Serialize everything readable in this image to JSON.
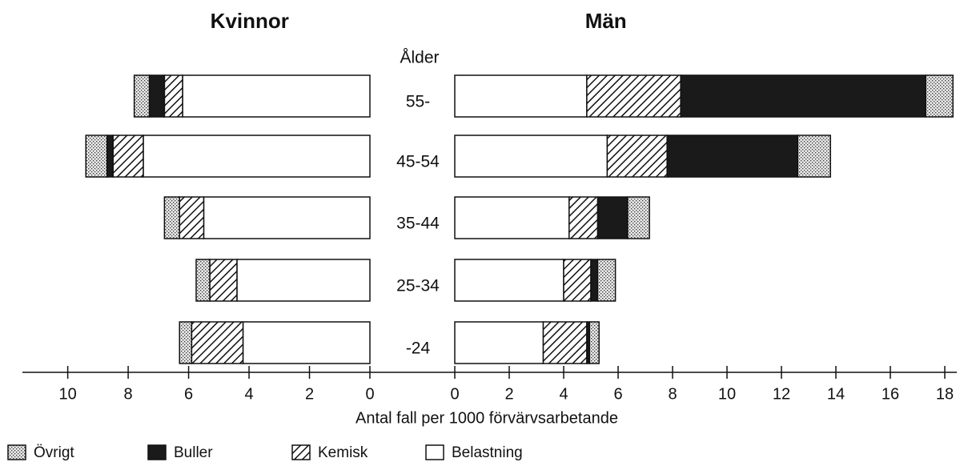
{
  "chart_data": {
    "type": "bar",
    "ylabel": "Ålder",
    "xlabel": "Antal fall per 1000 förvärvsarbetande",
    "categories": [
      "55-",
      "45-54",
      "35-44",
      "25-34",
      "-24"
    ],
    "legend": [
      {
        "name": "Övrigt",
        "pattern": "dots"
      },
      {
        "name": "Buller",
        "pattern": "solid"
      },
      {
        "name": "Kemisk",
        "pattern": "hatch"
      },
      {
        "name": "Belastning",
        "pattern": "white"
      }
    ],
    "stack_order": [
      3,
      2,
      1,
      0
    ],
    "panels": [
      {
        "title": "Kvinnor",
        "side": "left",
        "xlim": [
          0,
          11.5
        ],
        "xticks": [
          0,
          2,
          4,
          6,
          8,
          10
        ],
        "series": [
          {
            "values": [
              0.5,
              0.7,
              0.5,
              0.45,
              0.4
            ]
          },
          {
            "values": [
              0.5,
              0.2,
              0,
              0,
              0
            ]
          },
          {
            "values": [
              0.6,
              1.0,
              0.8,
              0.9,
              1.7
            ]
          },
          {
            "values": [
              6.2,
              7.5,
              5.5,
              4.4,
              4.2
            ]
          }
        ]
      },
      {
        "title": "Män",
        "side": "right",
        "xlim": [
          0,
          18.5
        ],
        "xticks": [
          0,
          2,
          4,
          6,
          8,
          10,
          12,
          14,
          16,
          18
        ],
        "series": [
          {
            "values": [
              1.0,
              1.2,
              0.8,
              0.65,
              0.35
            ]
          },
          {
            "values": [
              9.0,
              4.8,
              1.1,
              0.25,
              0.1
            ]
          },
          {
            "values": [
              3.45,
              2.2,
              1.05,
              1.0,
              1.6
            ]
          },
          {
            "values": [
              4.85,
              5.6,
              4.2,
              4.0,
              3.25
            ]
          }
        ]
      }
    ]
  }
}
